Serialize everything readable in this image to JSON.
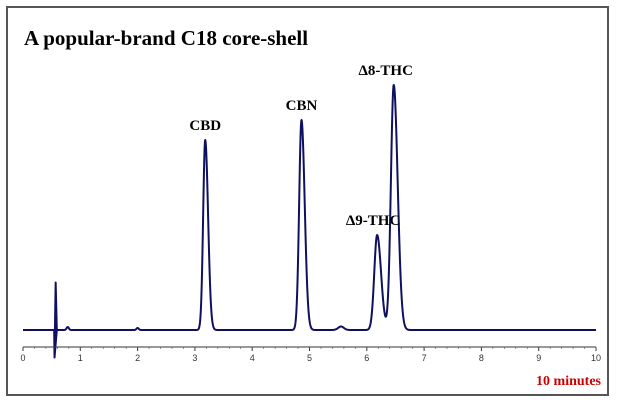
{
  "title": "A popular-brand C18 core-shell",
  "duration_note": "10 minutes",
  "colors": {
    "trace": "#101060",
    "duration_note": "#cc0000",
    "frame": "#555555"
  },
  "chart_data": {
    "type": "line",
    "title": "A popular-brand C18 core-shell",
    "xlabel": "",
    "ylabel": "",
    "xlim": [
      0,
      10
    ],
    "ylim": [
      0,
      100
    ],
    "grid": false,
    "x_ticks": [
      0,
      1,
      2,
      3,
      4,
      5,
      6,
      7,
      8,
      9,
      10
    ],
    "baseline": 0,
    "injection_disturbance": {
      "x": 0.55,
      "up": 19,
      "down": -11
    },
    "peaks": [
      {
        "label": "CBD",
        "rt": 3.18,
        "height": 76,
        "width": 0.04
      },
      {
        "label": "CBN",
        "rt": 4.86,
        "height": 84,
        "width": 0.045
      },
      {
        "label": "Δ9-THC",
        "rt": 6.18,
        "height": 38,
        "width": 0.055
      },
      {
        "label": "Δ8-THC",
        "rt": 6.47,
        "height": 98,
        "width": 0.055
      }
    ],
    "minor_peaks": [
      {
        "rt": 0.78,
        "height": 1.2,
        "width": 0.02
      },
      {
        "rt": 2.0,
        "height": 0.8,
        "width": 0.02
      },
      {
        "rt": 5.55,
        "height": 1.4,
        "width": 0.05
      }
    ]
  }
}
